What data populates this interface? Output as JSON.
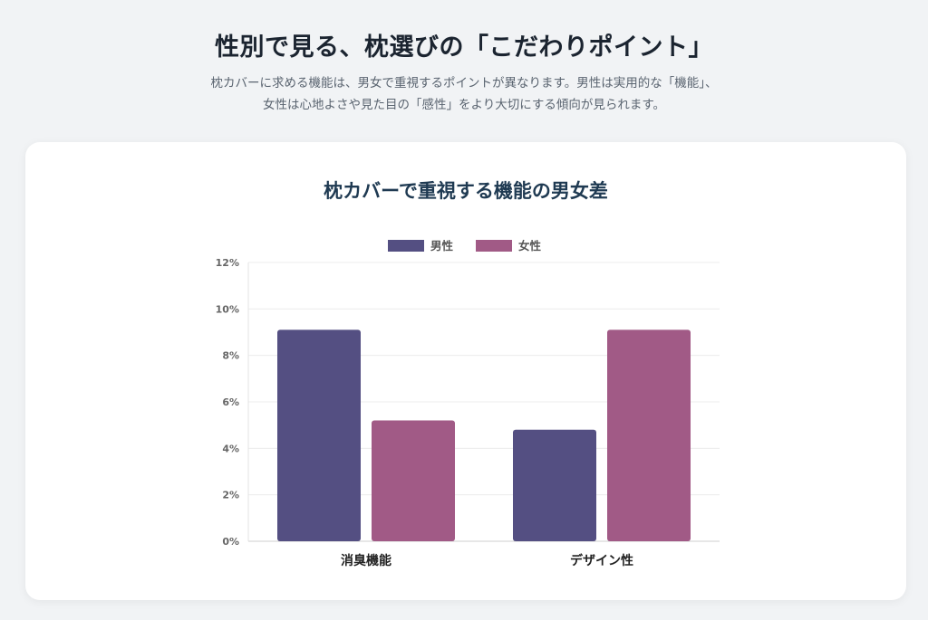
{
  "header": {
    "title": "性別で見る、枕選びの「こだわりポイント」",
    "subtitle_line1": "枕カバーに求める機能は、男女で重視するポイントが異なります。男性は実用的な「機能」、",
    "subtitle_line2": "女性は心地よさや見た目の「感性」をより大切にする傾向が見られます。"
  },
  "chart_data": {
    "type": "bar",
    "title": "枕カバーで重視する機能の男女差",
    "categories": [
      "消臭機能",
      "デザイン性"
    ],
    "series": [
      {
        "name": "男性",
        "values": [
          9.1,
          4.8
        ],
        "color": "#544f82"
      },
      {
        "name": "女性",
        "values": [
          5.2,
          9.1
        ],
        "color": "#a15a86"
      }
    ],
    "ylim": [
      0,
      12
    ],
    "yticks": [
      0,
      2,
      4,
      6,
      8,
      10,
      12
    ],
    "ytick_suffix": "%",
    "xlabel": "",
    "ylabel": "",
    "grid": true,
    "legend_position": "top"
  }
}
